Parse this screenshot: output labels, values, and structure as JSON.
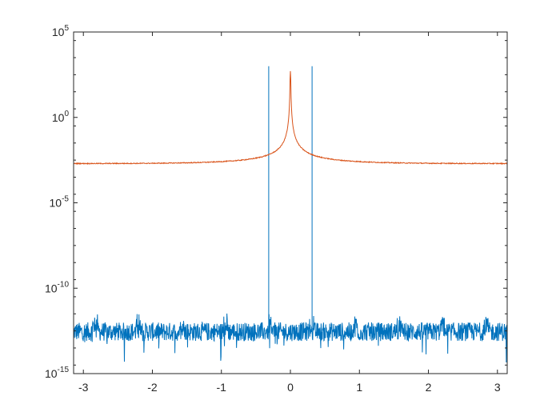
{
  "chart_data": {
    "type": "line",
    "title": "",
    "xlabel": "",
    "ylabel": "",
    "xlim": [
      -3.1416,
      3.1416
    ],
    "ylim_log10": [
      -15,
      5
    ],
    "yscale": "log",
    "grid": false,
    "box": true,
    "x_ticks": [
      -3,
      -2,
      -1,
      0,
      1,
      2,
      3
    ],
    "x_tick_labels": [
      "-3",
      "-2",
      "-1",
      "0",
      "1",
      "2",
      "3"
    ],
    "y_ticks_log10": [
      -15,
      -10,
      -5,
      0,
      5
    ],
    "y_tick_labels": [
      {
        "base": "10",
        "exp": "-15"
      },
      {
        "base": "10",
        "exp": "-10"
      },
      {
        "base": "10",
        "exp": "-5"
      },
      {
        "base": "10",
        "exp": "0"
      },
      {
        "base": "10",
        "exp": "5"
      }
    ],
    "series": [
      {
        "color": "#0072BD",
        "description_level": "noise floor around 1e-12.5 with two spikes",
        "floor_log10": -12.55,
        "noise_amplitude_log10": 0.55,
        "spikes": [
          {
            "x": -0.3142,
            "peak_log10": 3.0
          },
          {
            "x": 0.3142,
            "peak_log10": 3.0
          }
        ]
      },
      {
        "color": "#D95319",
        "base_log10": -2.7,
        "peak_x": 0.0,
        "peak_log10": 2.7,
        "edge_x": 3.1416
      }
    ]
  }
}
